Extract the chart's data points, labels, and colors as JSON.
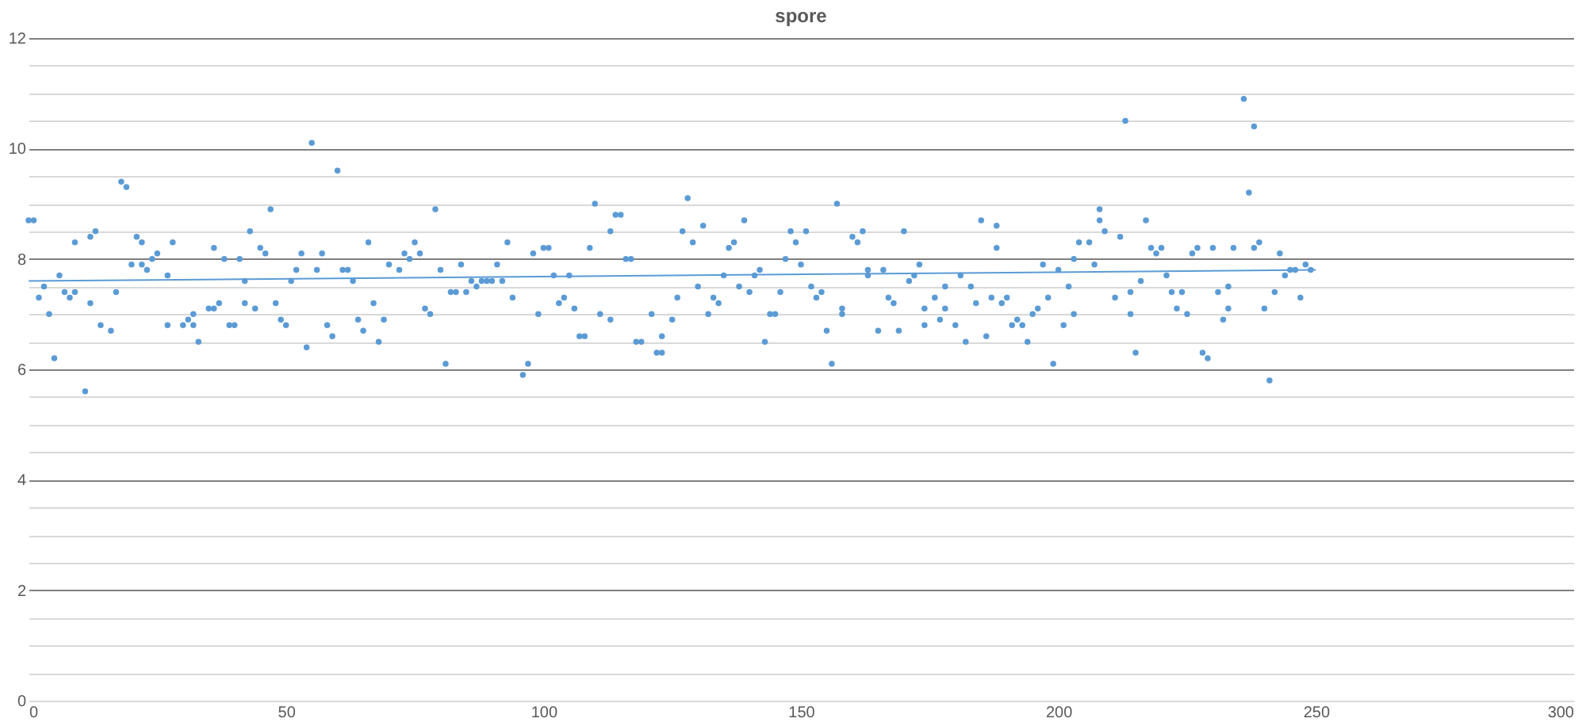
{
  "chart_data": {
    "type": "scatter",
    "title": "spore",
    "xlim": [
      0,
      300
    ],
    "xticks": [
      0,
      50,
      100,
      150,
      200,
      250,
      300
    ],
    "ylim": [
      0,
      12
    ],
    "yticks": [
      0,
      {
        "value": 0.5,
        "label": null
      },
      {
        "value": 1,
        "label": null
      },
      {
        "value": 1.5,
        "label": null
      },
      2,
      {
        "value": 2.5,
        "label": null
      },
      {
        "value": 3,
        "label": null
      },
      {
        "value": 3.5,
        "label": null
      },
      4,
      {
        "value": 4.5,
        "label": null
      },
      {
        "value": 5,
        "label": null
      },
      {
        "value": 5.5,
        "label": null
      },
      6,
      {
        "value": 6.5,
        "label": null
      },
      {
        "value": 7,
        "label": null
      },
      {
        "value": 7.5,
        "label": null
      },
      8,
      {
        "value": 8.5,
        "label": null
      },
      {
        "value": 9,
        "label": null
      },
      {
        "value": 9.5,
        "label": null
      },
      10,
      {
        "value": 10.5,
        "label": null
      },
      {
        "value": 11,
        "label": null
      },
      {
        "value": 11.5,
        "label": null
      },
      12
    ],
    "grid": "y",
    "marker": "circle",
    "series": [
      {
        "color": "#5b9bd5",
        "x": [
          0,
          1,
          2,
          3,
          4,
          5,
          6,
          7,
          8,
          9,
          9,
          11,
          12,
          12,
          13,
          14,
          16,
          17,
          18,
          19,
          20,
          21,
          22,
          22,
          23,
          24,
          25,
          27,
          27,
          28,
          30,
          31,
          32,
          32,
          33,
          35,
          36,
          36,
          37,
          38,
          39,
          40,
          41,
          42,
          42,
          43,
          44,
          45,
          46,
          47,
          48,
          49,
          50,
          51,
          52,
          53,
          54,
          55,
          56,
          57,
          58,
          59,
          60,
          61,
          62,
          63,
          64,
          65,
          66,
          67,
          68,
          69,
          70,
          72,
          73,
          74,
          75,
          76,
          77,
          78,
          79,
          80,
          81,
          82,
          83,
          84,
          85,
          86,
          87,
          88,
          89,
          90,
          91,
          92,
          93,
          94,
          96,
          97,
          98,
          99,
          100,
          101,
          102,
          103,
          104,
          105,
          106,
          107,
          108,
          109,
          110,
          111,
          113,
          113,
          114,
          115,
          116,
          117,
          118,
          119,
          121,
          122,
          123,
          123,
          125,
          126,
          127,
          128,
          129,
          130,
          131,
          132,
          133,
          134,
          135,
          136,
          137,
          138,
          139,
          140,
          141,
          142,
          143,
          144,
          145,
          146,
          147,
          148,
          149,
          150,
          151,
          152,
          153,
          154,
          155,
          156,
          157,
          158,
          158,
          160,
          161,
          162,
          163,
          163,
          165,
          166,
          167,
          168,
          169,
          170,
          171,
          172,
          173,
          174,
          174,
          176,
          177,
          178,
          178,
          180,
          181,
          182,
          183,
          184,
          185,
          186,
          187,
          188,
          188,
          189,
          190,
          191,
          192,
          193,
          194,
          195,
          196,
          197,
          198,
          199,
          200,
          201,
          202,
          203,
          203,
          204,
          206,
          207,
          208,
          208,
          209,
          211,
          212,
          213,
          214,
          214,
          215,
          216,
          217,
          218,
          219,
          220,
          221,
          222,
          223,
          224,
          225,
          226,
          227,
          228,
          229,
          230,
          231,
          232,
          233,
          233,
          234,
          236,
          237,
          238,
          238,
          239,
          240,
          241,
          242,
          243,
          244,
          245,
          246,
          247,
          248,
          249
        ],
        "values": [
          8.7,
          8.7,
          7.3,
          7.5,
          7.0,
          6.2,
          7.7,
          7.4,
          7.3,
          8.3,
          7.4,
          5.6,
          8.4,
          7.2,
          8.5,
          6.8,
          6.7,
          7.4,
          9.4,
          9.3,
          7.9,
          8.4,
          8.3,
          7.9,
          7.8,
          8.0,
          8.1,
          7.7,
          6.8,
          8.3,
          6.8,
          6.9,
          6.8,
          7.0,
          6.5,
          7.1,
          7.1,
          8.2,
          7.2,
          8.0,
          6.8,
          6.8,
          8.0,
          7.2,
          7.6,
          8.5,
          7.1,
          8.2,
          8.1,
          8.9,
          7.2,
          6.9,
          6.8,
          7.6,
          7.8,
          8.1,
          6.4,
          10.1,
          7.8,
          8.1,
          6.8,
          6.6,
          9.6,
          7.8,
          7.8,
          7.6,
          6.9,
          6.7,
          8.3,
          7.2,
          6.5,
          6.9,
          7.9,
          7.8,
          8.1,
          8.0,
          8.3,
          8.1,
          7.1,
          7.0,
          8.9,
          7.8,
          6.1,
          7.4,
          7.4,
          7.9,
          7.4,
          7.6,
          7.5,
          7.6,
          7.6,
          7.6,
          7.9,
          7.6,
          8.3,
          7.3,
          5.9,
          6.1,
          8.1,
          7.0,
          8.2,
          8.2,
          7.7,
          7.2,
          7.3,
          7.7,
          7.1,
          6.6,
          6.6,
          8.2,
          9.0,
          7.0,
          8.5,
          6.9,
          8.8,
          8.8,
          8.0,
          8.0,
          6.5,
          6.5,
          7.0,
          6.3,
          6.3,
          6.6,
          6.9,
          7.3,
          8.5,
          9.1,
          8.3,
          7.5,
          8.6,
          7.0,
          7.3,
          7.2,
          7.7,
          8.2,
          8.3,
          7.5,
          8.7,
          7.4,
          7.7,
          7.8,
          6.5,
          7.0,
          7.0,
          7.4,
          8.0,
          8.5,
          8.3,
          7.9,
          8.5,
          7.5,
          7.3,
          7.4,
          6.7,
          6.1,
          9.0,
          7.1,
          7.0,
          8.4,
          8.3,
          8.5,
          7.7,
          7.8,
          6.7,
          7.8,
          7.3,
          7.2,
          6.7,
          8.5,
          7.6,
          7.7,
          7.9,
          7.1,
          6.8,
          7.3,
          6.9,
          7.1,
          7.5,
          6.8,
          7.7,
          6.5,
          7.5,
          7.2,
          8.7,
          6.6,
          7.3,
          8.6,
          8.2,
          7.2,
          7.3,
          6.8,
          6.9,
          6.8,
          6.5,
          7.0,
          7.1,
          7.9,
          7.3,
          6.1,
          7.8,
          6.8,
          7.5,
          8.0,
          7.0,
          8.3,
          8.3,
          7.9,
          8.7,
          8.9,
          8.5,
          7.3,
          8.4,
          10.5,
          7.4,
          7.0,
          6.3,
          7.6,
          8.7,
          8.2,
          8.1,
          8.2,
          7.7,
          7.4,
          7.1,
          7.4,
          7.0,
          8.1,
          8.2,
          6.3,
          6.2,
          8.2,
          7.4,
          6.9,
          7.5,
          7.1,
          8.2,
          10.9,
          9.2,
          10.4,
          8.2,
          8.3,
          7.1,
          5.8,
          7.4,
          8.1,
          7.7,
          7.8,
          7.8,
          7.3,
          7.9,
          7.8
        ]
      },
      {
        "type": "line",
        "marker": "none",
        "color": "#5b9bd5",
        "x": [
          0,
          250
        ],
        "values": [
          7.6,
          7.8
        ]
      }
    ]
  }
}
